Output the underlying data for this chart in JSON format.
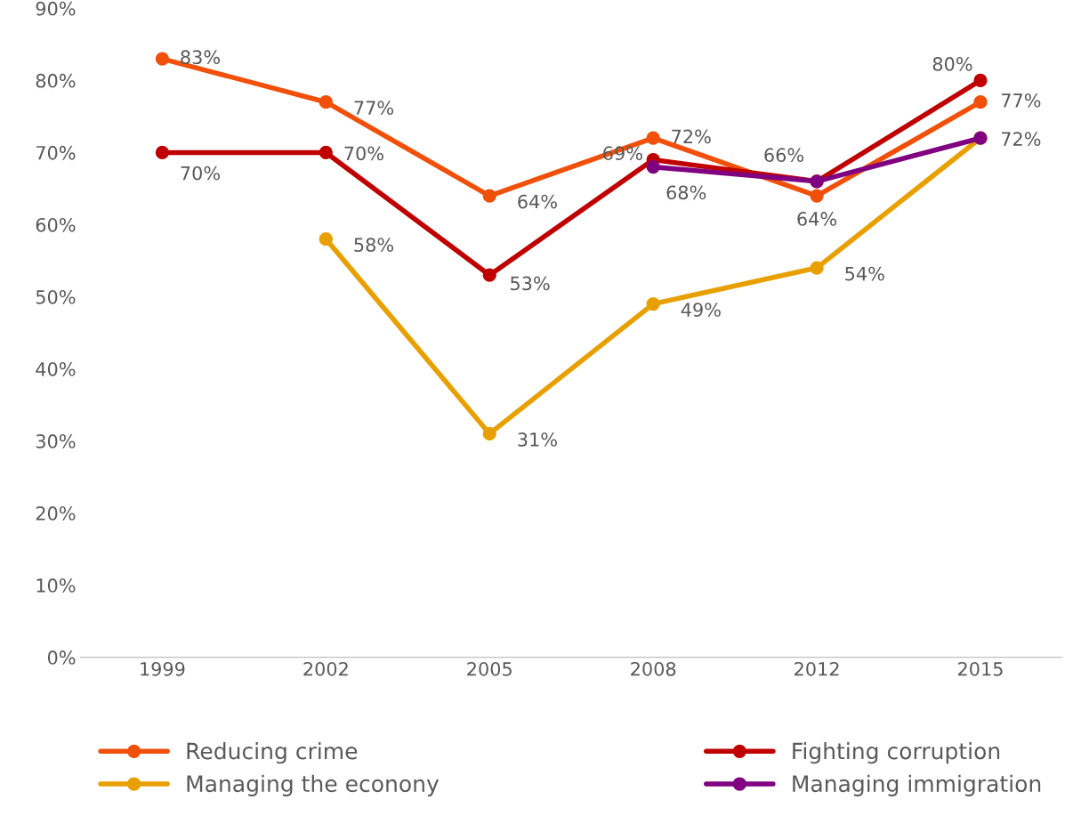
{
  "chart_data": {
    "type": "line",
    "categories": [
      "1999",
      "2002",
      "2005",
      "2008",
      "2012",
      "2015"
    ],
    "series": [
      {
        "name": "Reducing crime",
        "color": "#f0500a",
        "values": [
          83,
          77,
          64,
          72,
          64,
          77
        ],
        "value_labels": [
          "83%",
          "77%",
          "64%",
          "72%",
          "64%",
          "77%"
        ]
      },
      {
        "name": "Fighting corruption",
        "color": "#c00000",
        "values": [
          70,
          70,
          53,
          69,
          66,
          80
        ],
        "value_labels": [
          "70%",
          "70%",
          "53%",
          "69%",
          "66%",
          "80%"
        ]
      },
      {
        "name": "Managing the econony",
        "color": "#e8a000",
        "values": [
          null,
          58,
          31,
          49,
          54,
          72
        ],
        "value_labels": [
          null,
          "58%",
          "31%",
          "49%",
          "54%",
          null
        ]
      },
      {
        "name": "Managing immigration",
        "color": "#7f0080",
        "values": [
          null,
          null,
          null,
          68,
          66,
          72
        ],
        "value_labels": [
          null,
          null,
          null,
          "68%",
          null,
          "72%"
        ]
      }
    ],
    "ylim": [
      0,
      90
    ],
    "yticks": [
      {
        "value": 0,
        "label": "0%"
      },
      {
        "value": 10,
        "label": "10%"
      },
      {
        "value": 20,
        "label": "20%"
      },
      {
        "value": 30,
        "label": "30%"
      },
      {
        "value": 40,
        "label": "40%"
      },
      {
        "value": 50,
        "label": "50%"
      },
      {
        "value": 60,
        "label": "60%"
      },
      {
        "value": 70,
        "label": "70%"
      },
      {
        "value": 80,
        "label": "80%"
      },
      {
        "value": 90,
        "label": "90%"
      }
    ],
    "grid": false,
    "legend": "bottom",
    "marker": "circle",
    "line_style": "solid"
  }
}
